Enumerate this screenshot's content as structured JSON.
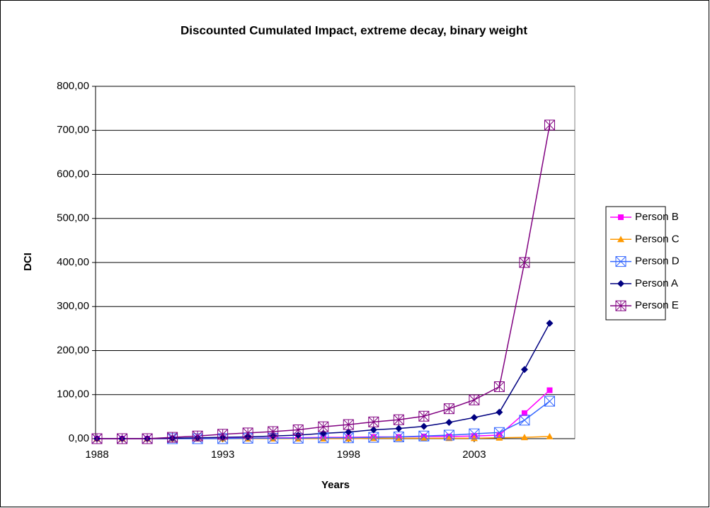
{
  "chart_data": {
    "type": "line",
    "title": "Discounted Cumulated Impact, extreme decay, binary weight",
    "x_label": "Years",
    "y_label": "DCI",
    "x": [
      1988,
      1989,
      1990,
      1991,
      1992,
      1993,
      1994,
      1995,
      1996,
      1997,
      1998,
      1999,
      2000,
      2001,
      2002,
      2003,
      2004,
      2005,
      2006
    ],
    "xlim": [
      1988,
      2007
    ],
    "xticks": [
      1988,
      1993,
      1998,
      2003
    ],
    "ylim": [
      0,
      800
    ],
    "yticks": [
      {
        "value": 0,
        "label": "0,00"
      },
      {
        "value": 100,
        "label": "100,00"
      },
      {
        "value": 200,
        "label": "200,00"
      },
      {
        "value": 300,
        "label": "300,00"
      },
      {
        "value": 400,
        "label": "400,00"
      },
      {
        "value": 500,
        "label": "500,00"
      },
      {
        "value": 600,
        "label": "600,00"
      },
      {
        "value": 700,
        "label": "700,00"
      },
      {
        "value": 800,
        "label": "800,00"
      }
    ],
    "grid": true,
    "legend": "right",
    "series": [
      {
        "name": "Person B",
        "color": "#ff00ff",
        "marker": "square",
        "values": [
          0,
          0,
          0,
          0,
          1,
          1,
          1,
          2,
          2,
          3,
          3,
          4,
          4,
          5,
          5,
          6,
          8,
          58,
          110
        ]
      },
      {
        "name": "Person C",
        "color": "#ff9900",
        "marker": "triangle",
        "values": [
          0,
          0,
          0,
          0,
          0,
          0,
          0,
          0,
          0,
          0,
          0,
          1,
          1,
          1,
          1,
          1,
          2,
          3,
          5
        ]
      },
      {
        "name": "Person D",
        "color": "#3366ff",
        "marker": "boxcross",
        "values": [
          0,
          0,
          0,
          0,
          0,
          0,
          1,
          1,
          1,
          2,
          2,
          3,
          4,
          6,
          8,
          11,
          14,
          42,
          85
        ]
      },
      {
        "name": "Person A",
        "color": "#000080",
        "marker": "diamond",
        "values": [
          0,
          0,
          0,
          1,
          2,
          3,
          4,
          6,
          8,
          12,
          15,
          20,
          23,
          28,
          37,
          48,
          60,
          157,
          262
        ]
      },
      {
        "name": "Person E",
        "color": "#800080",
        "marker": "boxstar",
        "values": [
          0,
          0,
          0,
          3,
          6,
          10,
          13,
          16,
          20,
          27,
          32,
          38,
          43,
          51,
          68,
          88,
          118,
          400,
          712
        ]
      }
    ]
  }
}
